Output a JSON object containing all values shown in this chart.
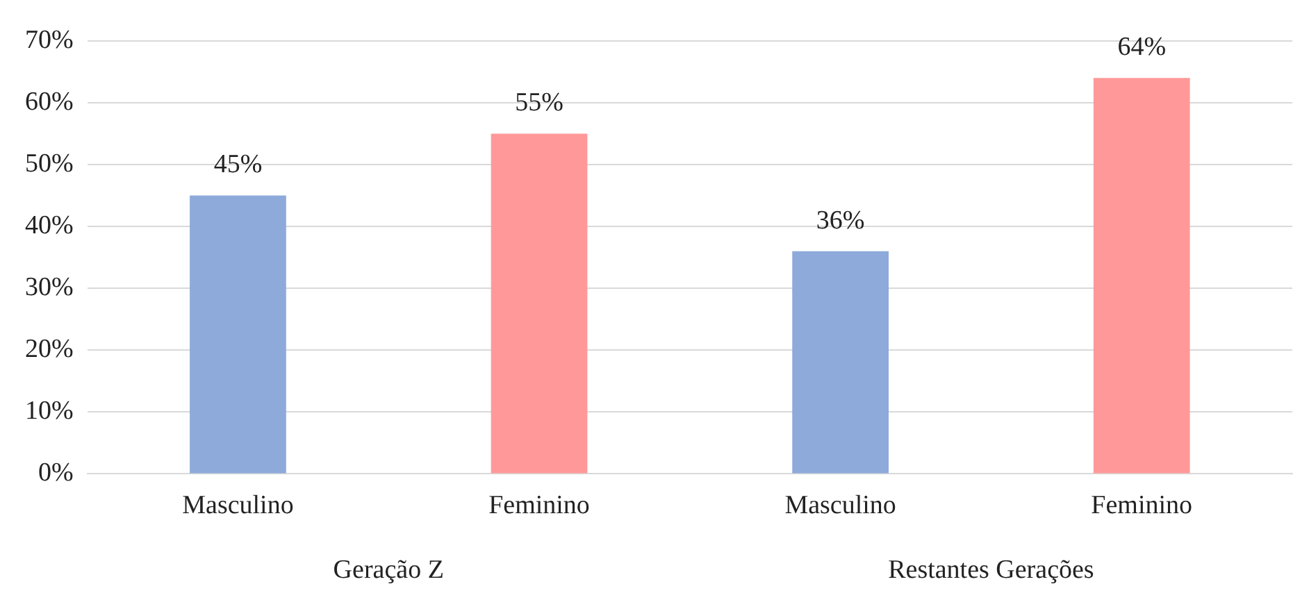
{
  "chart_data": {
    "type": "bar",
    "categories": [
      "Masculino",
      "Feminino",
      "Masculino",
      "Feminino"
    ],
    "values": [
      45,
      55,
      36,
      64
    ],
    "colors": [
      "#8eaadb",
      "#ff9999",
      "#8eaadb",
      "#ff9999"
    ],
    "value_labels": [
      "45%",
      "55%",
      "36%",
      "64%"
    ],
    "ylim": [
      0,
      70
    ],
    "yticks": [
      {
        "value": 0,
        "label": "0%"
      },
      {
        "value": 10,
        "label": "10%"
      },
      {
        "value": 20,
        "label": "20%"
      },
      {
        "value": 30,
        "label": "30%"
      },
      {
        "value": 40,
        "label": "40%"
      },
      {
        "value": 50,
        "label": "50%"
      },
      {
        "value": 60,
        "label": "60%"
      },
      {
        "value": 70,
        "label": "70%"
      }
    ],
    "annotations": [
      "Geração Z",
      "Restantes Gerações"
    ],
    "grid": "y",
    "legend": false
  }
}
